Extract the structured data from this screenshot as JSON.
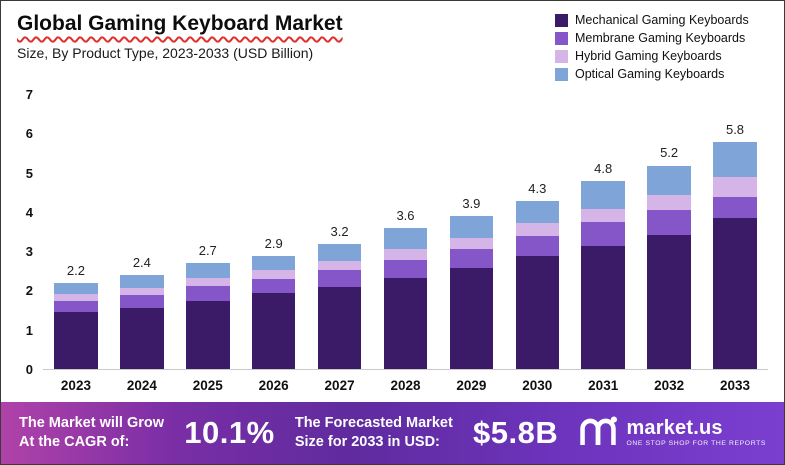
{
  "title": "Global Gaming Keyboard Market",
  "subtitle": "Size, By Product Type, 2023-2033 (USD Billion)",
  "chart_data": {
    "type": "bar",
    "stacked": true,
    "title": "Global Gaming Keyboard Market Size, By Product Type, 2023-2033 (USD Billion)",
    "categories": [
      "2023",
      "2024",
      "2025",
      "2026",
      "2027",
      "2028",
      "2029",
      "2030",
      "2031",
      "2032",
      "2033"
    ],
    "totals": [
      2.2,
      2.4,
      2.7,
      2.9,
      3.2,
      3.6,
      3.9,
      4.3,
      4.8,
      5.2,
      5.8
    ],
    "series": [
      {
        "name": "Mechanical Gaming Keyboards",
        "color": "#3b1a68",
        "values": [
          1.45,
          1.57,
          1.75,
          1.93,
          2.1,
          2.33,
          2.58,
          2.88,
          3.15,
          3.42,
          3.85
        ]
      },
      {
        "name": "Membrane Gaming Keyboards",
        "color": "#8456c8",
        "values": [
          0.3,
          0.33,
          0.37,
          0.38,
          0.42,
          0.46,
          0.48,
          0.52,
          0.6,
          0.64,
          0.55
        ]
      },
      {
        "name": "Hybrid Gaming Keyboards",
        "color": "#d5b5e8",
        "values": [
          0.17,
          0.18,
          0.2,
          0.22,
          0.25,
          0.28,
          0.3,
          0.32,
          0.35,
          0.38,
          0.5
        ]
      },
      {
        "name": "Optical Gaming Keyboards",
        "color": "#7ea4d8",
        "values": [
          0.28,
          0.32,
          0.38,
          0.37,
          0.43,
          0.53,
          0.54,
          0.58,
          0.7,
          0.76,
          0.9
        ]
      }
    ],
    "xlabel": "",
    "ylabel": "",
    "ylim": [
      0,
      7
    ],
    "yticks": [
      0,
      1,
      2,
      3,
      4,
      5,
      6,
      7
    ],
    "grid": false,
    "legend_position": "top-right"
  },
  "footer": {
    "cagr_label": "The Market will Grow\nAt the CAGR of:",
    "cagr_value": "10.1%",
    "forecast_label": "The Forecasted Market\nSize for 2033 in USD:",
    "forecast_value": "$5.8B",
    "brand": "market.us",
    "tagline": "One Stop Shop For The Reports"
  }
}
